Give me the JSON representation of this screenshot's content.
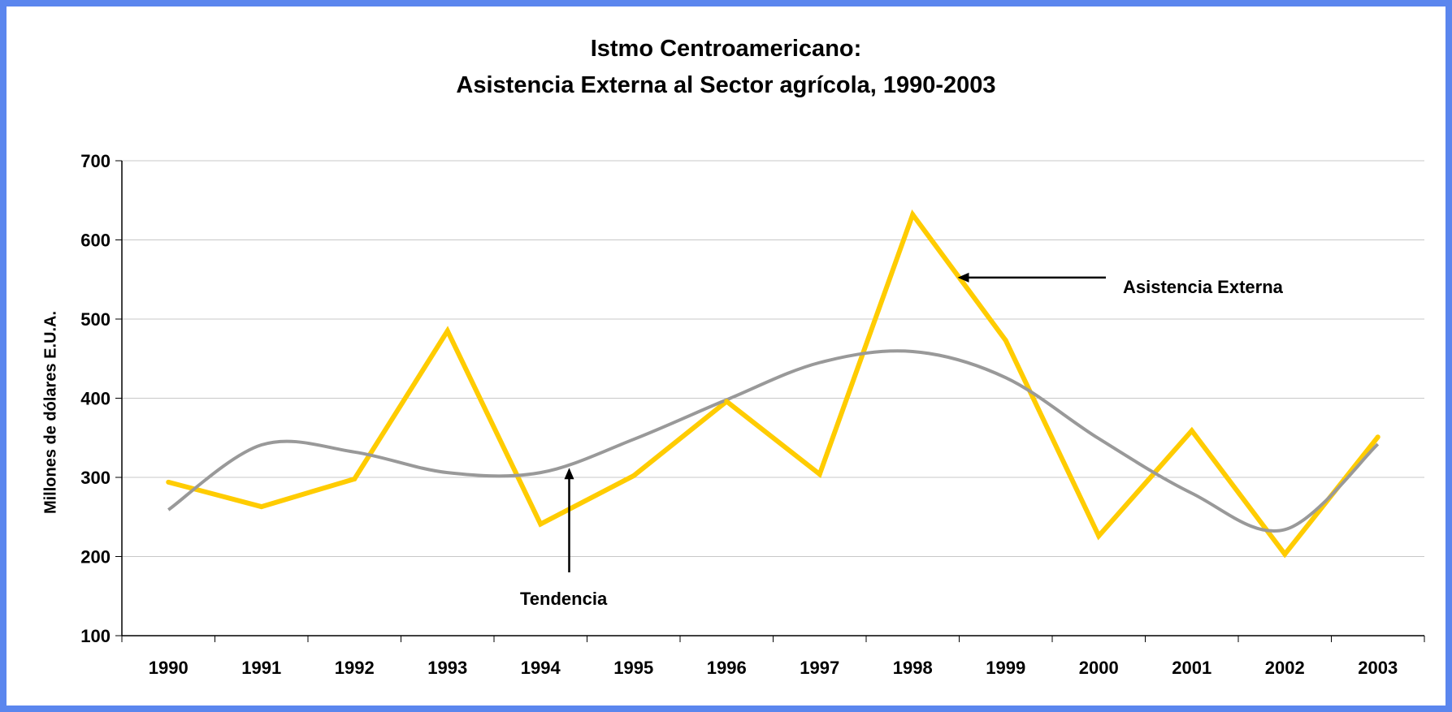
{
  "chart_data": {
    "type": "line",
    "title": [
      "Istmo Centroamericano:",
      "Asistencia Externa al Sector agrícola, 1990-2003"
    ],
    "xlabel": "",
    "ylabel": "Millones de dólares E.U.A.",
    "ylim": [
      100,
      700
    ],
    "yticks": [
      "100",
      "200",
      "300",
      "400",
      "500",
      "600",
      "700"
    ],
    "categories": [
      "1990",
      "1991",
      "1992",
      "1993",
      "1994",
      "1995",
      "1996",
      "1997",
      "1998",
      "1999",
      "2000",
      "2001",
      "2002",
      "2003"
    ],
    "grid": true,
    "colors": {
      "asistencia": "#ffcc00",
      "tendencia": "#999999"
    },
    "series": [
      {
        "name": "Asistencia Externa",
        "values": [
          294,
          263,
          298,
          485,
          241,
          302,
          396,
          304,
          632,
          473,
          226,
          359,
          203,
          351
        ]
      },
      {
        "name": "Tendencia",
        "values": [
          259,
          341,
          332,
          306,
          306,
          348,
          398,
          445,
          459,
          426,
          349,
          280,
          234,
          342
        ]
      }
    ],
    "annotations": [
      {
        "text": "Asistencia Externa",
        "target_series": "Asistencia Externa"
      },
      {
        "text": "Tendencia",
        "target_series": "Tendencia"
      }
    ]
  }
}
